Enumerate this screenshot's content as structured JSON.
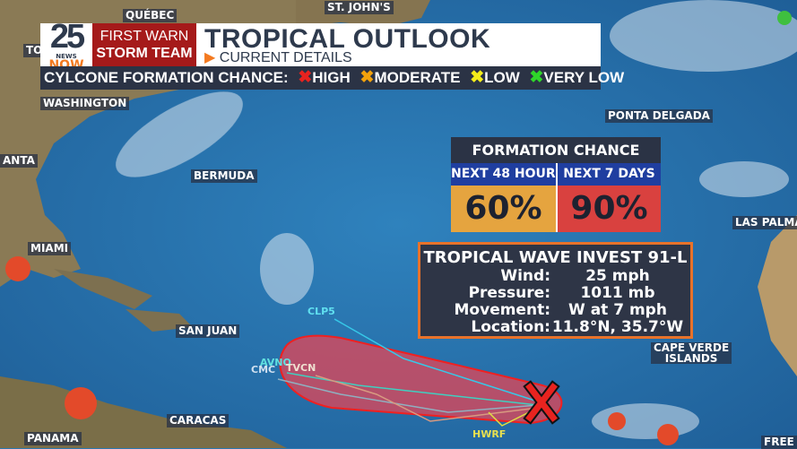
{
  "header": {
    "logo_number": "25",
    "logo_news": "NEWS",
    "logo_now": "NOW",
    "brand_line1": "FIRST WARN",
    "brand_line2": "STORM TEAM",
    "title": "TROPICAL OUTLOOK",
    "subtitle": "CURRENT DETAILS"
  },
  "legend": {
    "label": "CYLCONE FORMATION CHANCE:",
    "items": [
      {
        "label": "HIGH",
        "color": "#e8231f"
      },
      {
        "label": "MODERATE",
        "color": "#f2a20c"
      },
      {
        "label": "LOW",
        "color": "#f4ee1a"
      },
      {
        "label": "VERY LOW",
        "color": "#2fd62a"
      }
    ]
  },
  "formation": {
    "title": "FORMATION CHANCE",
    "periods": [
      {
        "label": "NEXT 48 HOURS",
        "value": "60%",
        "color": "#e5a43f"
      },
      {
        "label": "NEXT 7 DAYS",
        "value": "90%",
        "color": "#d9413f"
      }
    ]
  },
  "storm": {
    "name": "TROPICAL WAVE INVEST 91-L",
    "rows": [
      {
        "key": "Wind:",
        "value": "25 mph"
      },
      {
        "key": "Pressure:",
        "value": "1011 mb"
      },
      {
        "key": "Movement:",
        "value": "W at 7 mph"
      },
      {
        "key": "Location:",
        "value": "11.8°N, 35.7°W"
      }
    ]
  },
  "cities": {
    "quebec": "QUÉBEC",
    "stjohns": "ST. JOHN'S",
    "toronto": "TO",
    "washington": "WASHINGTON",
    "atlanta": "ANTA",
    "bermuda": "BERMUDA",
    "miami": "MIAMI",
    "sanjuan": "SAN JUAN",
    "caracas": "CARACAS",
    "panama": "PANAMA",
    "ponta": "PONTA DELGADA",
    "laspalmas": "LAS PALMA",
    "capeverde1": "CAPE VERDE",
    "capeverde2": "ISLANDS",
    "freetown": "FREE"
  },
  "models": {
    "clp5": "CLP5",
    "avno": "AVNO",
    "cmc": "CMC",
    "tvcn": "TVCN",
    "hwrf": "HWRF"
  },
  "marker": {
    "icon": "x-icon",
    "risk": "HIGH",
    "color": "#e8231f"
  }
}
